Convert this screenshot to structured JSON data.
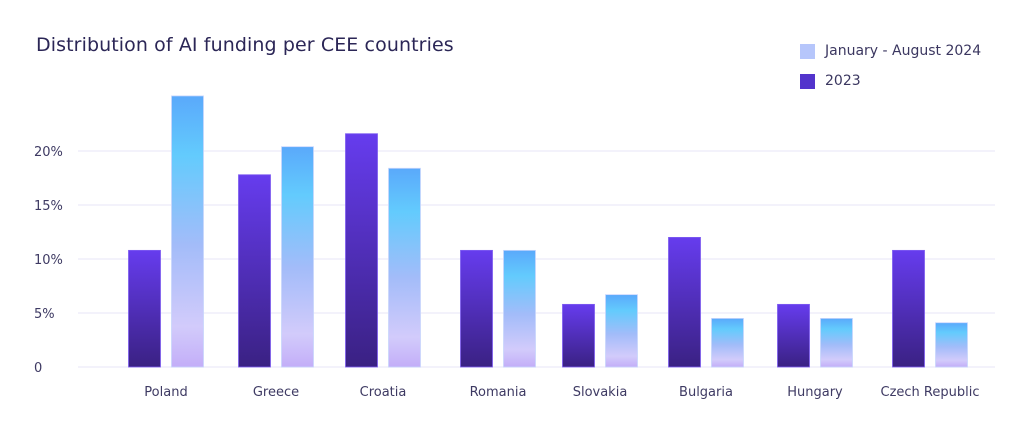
{
  "chart_data": {
    "type": "bar",
    "title": "Distribution of AI funding per CEE countries",
    "xlabel": "",
    "ylabel": "",
    "ylim": [
      0,
      26
    ],
    "yticks": [
      0,
      5,
      10,
      15,
      20
    ],
    "ytick_labels": [
      "0",
      "5%",
      "10%",
      "15%",
      "20%"
    ],
    "grid": true,
    "legend_position": "top-right",
    "categories": [
      "Poland",
      "Greece",
      "Croatia",
      "Romania",
      "Slovakia",
      "Bulgaria",
      "Hungary",
      "Czech Republic"
    ],
    "series": [
      {
        "name": "2023",
        "color": "#5b3bd6",
        "values": [
          10.8,
          17.8,
          21.6,
          10.8,
          5.8,
          12.0,
          5.8,
          10.8
        ]
      },
      {
        "name": "January - August 2024",
        "color": "#b6c6fb",
        "values": [
          25.1,
          20.4,
          18.4,
          10.8,
          6.7,
          4.5,
          4.5,
          4.1
        ]
      }
    ],
    "legend": [
      "January - August 2024",
      "2023"
    ]
  }
}
